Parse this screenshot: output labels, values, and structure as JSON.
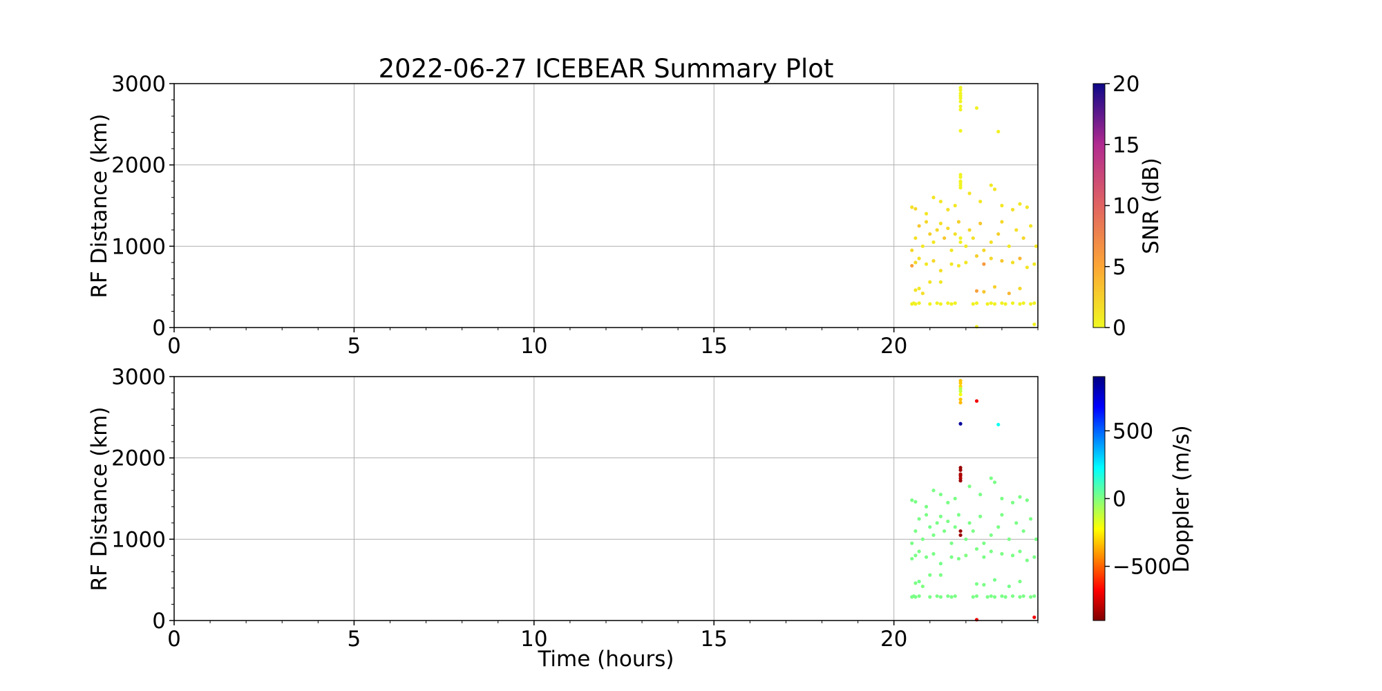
{
  "title": "2022-06-27 ICEBEAR Summary Plot",
  "chart_data": [
    {
      "type": "scatter",
      "ylabel": "RF Distance (km)",
      "xlabel": "",
      "xlim": [
        0,
        24
      ],
      "ylim": [
        0,
        3000
      ],
      "x_ticks": [
        "0",
        "5",
        "10",
        "15",
        "20"
      ],
      "y_ticks": [
        "0",
        "1000",
        "2000",
        "3000"
      ],
      "grid": true,
      "color_variable": "snr",
      "colorbar": {
        "label": "SNR (dB)",
        "range": [
          0,
          20
        ],
        "ticks": [
          "0",
          "5",
          "10",
          "15",
          "20"
        ],
        "colormap": "plasma_r"
      },
      "series": [
        {
          "time_hours": 20.5,
          "range_km": 290,
          "snr_db": 0.5,
          "doppler_ms": 10
        }
      ]
    },
    {
      "type": "scatter",
      "ylabel": "RF Distance (km)",
      "xlabel": "Time (hours)",
      "xlim": [
        0,
        24
      ],
      "ylim": [
        0,
        3000
      ],
      "x_ticks": [
        "0",
        "5",
        "10",
        "15",
        "20"
      ],
      "y_ticks": [
        "0",
        "1000",
        "2000",
        "3000"
      ],
      "grid": true,
      "color_variable": "doppler",
      "colorbar": {
        "label": "Doppler (m/s)",
        "range": [
          -900,
          900
        ],
        "ticks": [
          "−500",
          "0",
          "500"
        ],
        "colormap": "jet_r"
      }
    }
  ],
  "points": [
    [
      20.5,
      290,
      0.5,
      10
    ],
    [
      20.6,
      290,
      0.5,
      10
    ],
    [
      20.7,
      300,
      0.5,
      10
    ],
    [
      20.55,
      300,
      0.5,
      10
    ],
    [
      21.0,
      290,
      0.5,
      10
    ],
    [
      21.2,
      300,
      0.5,
      10
    ],
    [
      21.3,
      290,
      0.5,
      10
    ],
    [
      21.5,
      300,
      0.5,
      10
    ],
    [
      21.6,
      290,
      0.5,
      10
    ],
    [
      21.7,
      300,
      0.5,
      10
    ],
    [
      22.2,
      290,
      0.5,
      10
    ],
    [
      22.3,
      300,
      0.5,
      10
    ],
    [
      22.6,
      290,
      0.5,
      10
    ],
    [
      22.7,
      300,
      0.5,
      10
    ],
    [
      22.8,
      290,
      0.5,
      10
    ],
    [
      23.0,
      300,
      0.5,
      10
    ],
    [
      23.1,
      290,
      0.5,
      10
    ],
    [
      23.3,
      300,
      0.5,
      10
    ],
    [
      23.5,
      290,
      0.5,
      10
    ],
    [
      23.6,
      300,
      0.5,
      10
    ],
    [
      23.8,
      290,
      0.5,
      10
    ],
    [
      23.9,
      300,
      0.5,
      10
    ],
    [
      20.6,
      460,
      1.2,
      10
    ],
    [
      20.7,
      480,
      1.0,
      20
    ],
    [
      20.8,
      420,
      1.5,
      0
    ],
    [
      21.0,
      560,
      1.2,
      10
    ],
    [
      21.3,
      560,
      1.0,
      10
    ],
    [
      22.3,
      450,
      5.5,
      10
    ],
    [
      22.5,
      440,
      3.0,
      10
    ],
    [
      22.8,
      500,
      2.5,
      20
    ],
    [
      23.2,
      420,
      4.0,
      20
    ],
    [
      23.5,
      480,
      2.0,
      10
    ],
    [
      20.5,
      760,
      5.5,
      10
    ],
    [
      20.6,
      800,
      2.0,
      10
    ],
    [
      20.7,
      850,
      1.5,
      10
    ],
    [
      20.9,
      780,
      1.0,
      10
    ],
    [
      21.1,
      820,
      2.0,
      10
    ],
    [
      21.3,
      700,
      1.5,
      20
    ],
    [
      21.6,
      780,
      1.0,
      10
    ],
    [
      21.8,
      760,
      1.2,
      10
    ],
    [
      22.0,
      800,
      1.0,
      0
    ],
    [
      22.3,
      880,
      2.5,
      10
    ],
    [
      22.5,
      780,
      6.0,
      10
    ],
    [
      22.7,
      850,
      2.0,
      10
    ],
    [
      23.0,
      820,
      3.0,
      10
    ],
    [
      23.3,
      800,
      1.5,
      10
    ],
    [
      23.5,
      850,
      4.0,
      10
    ],
    [
      23.7,
      740,
      1.2,
      10
    ],
    [
      23.9,
      780,
      1.0,
      10
    ],
    [
      20.5,
      950,
      2.0,
      10
    ],
    [
      20.6,
      1100,
      1.5,
      10
    ],
    [
      20.7,
      1250,
      3.0,
      10
    ],
    [
      20.8,
      1000,
      1.0,
      10
    ],
    [
      20.9,
      1300,
      2.0,
      10
    ],
    [
      21.0,
      1150,
      2.5,
      20
    ],
    [
      21.1,
      1050,
      1.0,
      10
    ],
    [
      21.2,
      1200,
      2.0,
      10
    ],
    [
      21.3,
      1280,
      1.5,
      10
    ],
    [
      21.4,
      1100,
      3.0,
      10
    ],
    [
      21.5,
      1220,
      2.0,
      10
    ],
    [
      21.6,
      950,
      1.0,
      10
    ],
    [
      21.7,
      1150,
      1.5,
      10
    ],
    [
      21.8,
      1300,
      2.5,
      10
    ],
    [
      22.0,
      1000,
      1.0,
      10
    ],
    [
      22.1,
      1200,
      2.0,
      10
    ],
    [
      22.2,
      1100,
      1.5,
      10
    ],
    [
      22.4,
      1280,
      3.0,
      10
    ],
    [
      22.5,
      950,
      2.0,
      10
    ],
    [
      22.7,
      1050,
      1.5,
      10
    ],
    [
      22.9,
      1150,
      2.5,
      10
    ],
    [
      23.0,
      1300,
      2.0,
      10
    ],
    [
      23.2,
      1000,
      1.0,
      10
    ],
    [
      23.4,
      1200,
      1.5,
      10
    ],
    [
      23.6,
      1100,
      2.0,
      10
    ],
    [
      23.8,
      1250,
      1.2,
      10
    ],
    [
      23.95,
      1000,
      1.0,
      10
    ],
    [
      20.5,
      1480,
      1.5,
      10
    ],
    [
      20.6,
      1460,
      2.0,
      10
    ],
    [
      20.9,
      1400,
      1.0,
      10
    ],
    [
      21.1,
      1600,
      1.2,
      10
    ],
    [
      21.3,
      1550,
      1.0,
      10
    ],
    [
      21.5,
      1450,
      1.5,
      10
    ],
    [
      21.7,
      1500,
      1.0,
      10
    ],
    [
      22.1,
      1650,
      1.2,
      10
    ],
    [
      22.4,
      1550,
      1.0,
      10
    ],
    [
      22.7,
      1750,
      1.0,
      10
    ],
    [
      22.8,
      1700,
      1.2,
      10
    ],
    [
      23.0,
      1500,
      1.0,
      10
    ],
    [
      23.3,
      1450,
      1.5,
      10
    ],
    [
      23.5,
      1520,
      1.0,
      10
    ],
    [
      23.7,
      1480,
      1.2,
      10
    ],
    [
      21.85,
      1750,
      0.3,
      -800
    ],
    [
      21.85,
      1800,
      0.3,
      -820
    ],
    [
      21.85,
      1850,
      0.3,
      -850
    ],
    [
      21.85,
      1880,
      0.3,
      -860
    ],
    [
      21.85,
      1780,
      0.3,
      -820
    ],
    [
      21.85,
      1720,
      0.3,
      -850
    ],
    [
      21.85,
      2680,
      0.3,
      -350
    ],
    [
      21.85,
      2720,
      0.3,
      -330
    ],
    [
      21.85,
      2780,
      0.3,
      -200
    ],
    [
      21.85,
      2820,
      0.3,
      -120
    ],
    [
      21.85,
      2880,
      0.3,
      -300
    ],
    [
      21.85,
      2920,
      0.3,
      -320
    ],
    [
      21.85,
      2950,
      0.3,
      -330
    ],
    [
      21.85,
      2850,
      0.3,
      -100
    ],
    [
      21.85,
      2420,
      0.3,
      850
    ],
    [
      21.85,
      1050,
      0.5,
      -850
    ],
    [
      21.85,
      1100,
      0.5,
      -860
    ],
    [
      22.3,
      2700,
      0.5,
      -700
    ],
    [
      22.9,
      2410,
      0.5,
      200
    ],
    [
      22.3,
      10,
      0.5,
      -700
    ],
    [
      23.9,
      40,
      0.5,
      -700
    ]
  ]
}
